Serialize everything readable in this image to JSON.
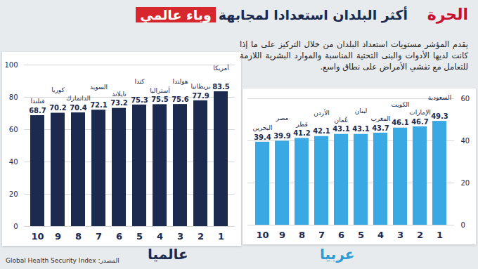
{
  "header": {
    "logo": "الحرة",
    "title": "أكثر البلدان استعدادا لمجابهة",
    "title_highlight": "وباء عالمي",
    "description": "يقدم المؤشر مستويات استعداد البلدان من خلال التركيز على ما إذا كانت لديها الأدوات والبنى التحتية المناسبة والموارد البشرية اللازمة للتعامل مع تفشي الأمراض على نطاق واسع.",
    "source": "المصدر: Global Health Security Index"
  },
  "chart_data": [
    {
      "type": "bar",
      "title": "عالميا",
      "categories": [
        "فنلندا",
        "كوريا",
        "الدانمارك",
        "السويد",
        "تايلاند",
        "كندا",
        "أستراليا",
        "هولندا",
        "بريطانيا",
        "أمريكا"
      ],
      "values": [
        68.7,
        70.2,
        70.4,
        72.1,
        73.2,
        75.3,
        75.5,
        75.6,
        77.9,
        83.5
      ],
      "ranks": [
        10,
        9,
        8,
        7,
        6,
        5,
        4,
        3,
        2,
        1
      ],
      "color": "#1b2a4e",
      "ylim": [
        0,
        100
      ],
      "yticks": [
        0,
        20,
        40,
        60,
        80,
        100
      ],
      "grid": true,
      "data_labels": true
    },
    {
      "type": "bar",
      "title": "عربيا",
      "categories": [
        "البحرين",
        "مصر",
        "قطر",
        "الأردن",
        "عُمان",
        "لبنان",
        "المغرب",
        "الكويت",
        "الإمارات",
        "السعودية"
      ],
      "values": [
        39.4,
        39.9,
        41.2,
        42.1,
        43.1,
        43.1,
        43.7,
        46.1,
        46.7,
        49.3
      ],
      "ranks": [
        10,
        9,
        8,
        7,
        6,
        5,
        4,
        3,
        2,
        1
      ],
      "color": "#3aa9e3",
      "ylim": [
        0,
        60
      ],
      "yticks": [
        0,
        20,
        40,
        60
      ],
      "grid": true,
      "data_labels": true
    }
  ]
}
